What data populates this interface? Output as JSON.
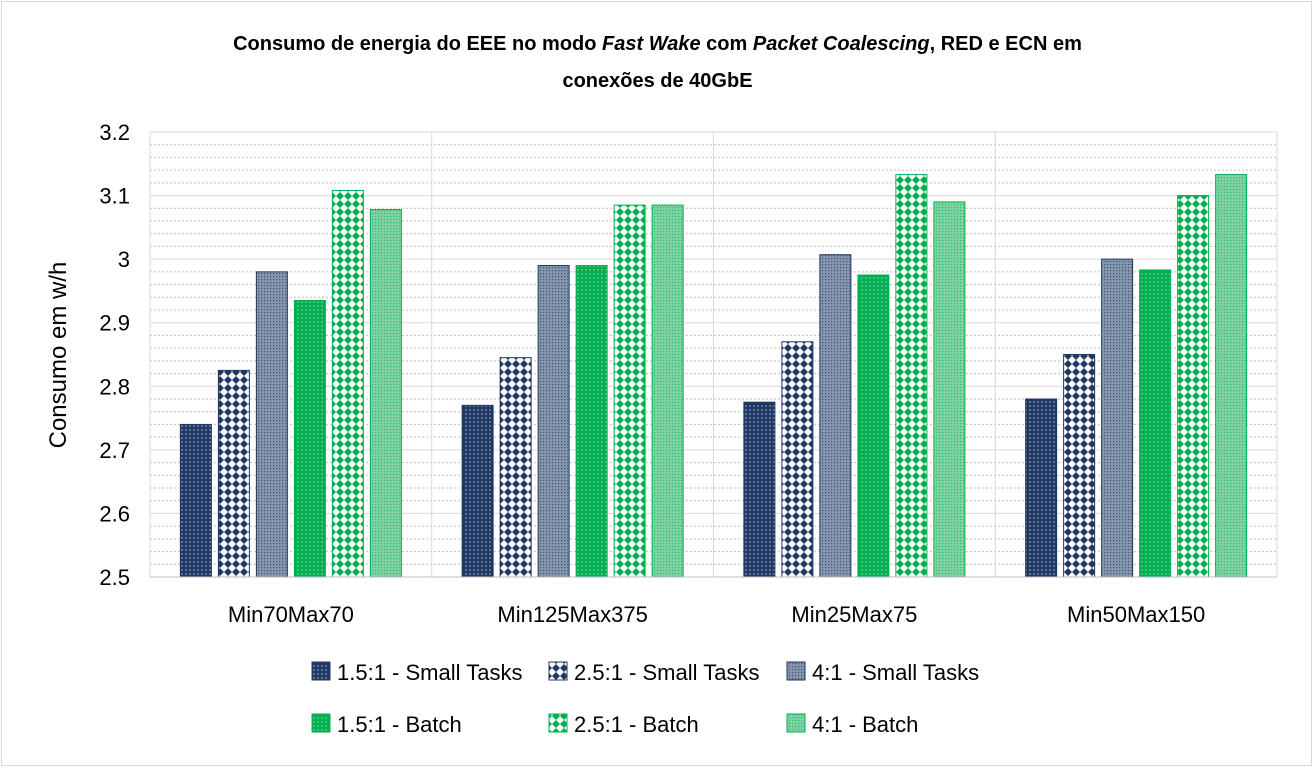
{
  "chart_data": {
    "type": "bar",
    "title_parts": [
      "Consumo de energia do EEE no modo ",
      "Fast Wake",
      " com ",
      "Packet Coalescing",
      ", RED e ECN em",
      "conexões de 40GbE"
    ],
    "xlabel": "",
    "ylabel": "Consumo em w/h",
    "ylim": [
      2.5,
      3.2
    ],
    "yticks": [
      "2.5",
      "2.6",
      "2.7",
      "2.8",
      "2.9",
      "3",
      "3.1",
      "3.2"
    ],
    "minor_grid_step": 0.02,
    "grid": true,
    "legend_position": "bottom",
    "categories": [
      "Min70Max70",
      "Min125Max375",
      "Min25Max75",
      "Min50Max150"
    ],
    "series": [
      {
        "name": "1.5:1 - Small Tasks",
        "values": [
          2.74,
          2.77,
          2.775,
          2.78
        ],
        "color": "#1f3864",
        "pattern": "dots"
      },
      {
        "name": "2.5:1 - Small Tasks",
        "values": [
          2.825,
          2.845,
          2.87,
          2.85
        ],
        "color": "#1f3864",
        "pattern": "diamond-check"
      },
      {
        "name": "4:1 - Small Tasks",
        "values": [
          2.98,
          2.99,
          3.007,
          3.0
        ],
        "color": "#44546a",
        "pattern": "fine-grid"
      },
      {
        "name": "1.5:1 - Batch",
        "values": [
          2.935,
          2.99,
          2.975,
          2.983
        ],
        "color": "#00b050",
        "pattern": "dots"
      },
      {
        "name": "2.5:1 - Batch",
        "values": [
          3.108,
          3.085,
          3.133,
          3.1
        ],
        "color": "#00b050",
        "pattern": "diamond-check"
      },
      {
        "name": "4:1 - Batch",
        "values": [
          3.078,
          3.085,
          3.09,
          3.133
        ],
        "color": "#2eb872",
        "pattern": "fine-grid"
      }
    ]
  }
}
